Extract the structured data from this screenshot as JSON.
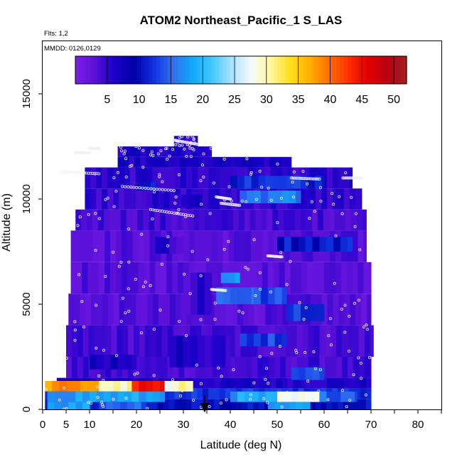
{
  "chart_data": {
    "type": "heatmap",
    "title": "ATOM2 Northeast_Pacific_1 S_LAS",
    "notes": [
      "Flts: 1,2",
      "MMDD: 0126,0129"
    ],
    "xlabel": "Latitude (deg N)",
    "ylabel": "Altitude (m)",
    "xlim": [
      0,
      85
    ],
    "ylim": [
      0,
      17500
    ],
    "x_ticks": [
      0,
      5,
      10,
      20,
      30,
      40,
      50,
      60,
      70,
      80
    ],
    "y_ticks": [
      0,
      5000,
      10000,
      15000
    ],
    "colorbar": {
      "min": 0,
      "max": 52,
      "ticks": [
        5,
        10,
        15,
        20,
        25,
        30,
        35,
        40,
        45,
        50
      ],
      "colors": [
        "#7a1ee8",
        "#5a10d8",
        "#1a00c8",
        "#0000a8",
        "#1030e0",
        "#3070f0",
        "#10a8f8",
        "#40c8ff",
        "#a8e0ff",
        "#f4fbff",
        "#fff8a0",
        "#ffe020",
        "#ffb000",
        "#ff7000",
        "#ff3000",
        "#e00000",
        "#b80010",
        "#a02020"
      ]
    },
    "layers": [
      {
        "alt": [
          0,
          500
        ],
        "lat": [
          0.5,
          70
        ],
        "level": 10
      },
      {
        "alt": [
          500,
          1000
        ],
        "lat": [
          0.5,
          70
        ],
        "level": 12
      },
      {
        "alt": [
          1000,
          1500
        ],
        "lat": [
          3,
          70
        ],
        "level": 6
      },
      {
        "alt": [
          1500,
          2500
        ],
        "lat": [
          5,
          70
        ],
        "level": 4
      },
      {
        "alt": [
          2500,
          4000
        ],
        "lat": [
          5,
          70.5
        ],
        "level": 4
      },
      {
        "alt": [
          4000,
          5500
        ],
        "lat": [
          5.5,
          70
        ],
        "level": 3
      },
      {
        "alt": [
          5500,
          7000
        ],
        "lat": [
          6,
          70
        ],
        "level": 3
      },
      {
        "alt": [
          7000,
          8500
        ],
        "lat": [
          6,
          69
        ],
        "level": 3
      },
      {
        "alt": [
          8500,
          9500
        ],
        "lat": [
          7,
          69
        ],
        "level": 4
      },
      {
        "alt": [
          9500,
          10500
        ],
        "lat": [
          9,
          68
        ],
        "level": 5
      },
      {
        "alt": [
          10500,
          11500
        ],
        "lat": [
          9,
          66
        ],
        "level": 5
      },
      {
        "alt": [
          11500,
          12000
        ],
        "lat": [
          16,
          53
        ],
        "level": 6
      },
      {
        "alt": [
          12000,
          12500
        ],
        "lat": [
          16,
          36
        ],
        "level": 6
      },
      {
        "alt": [
          12500,
          13000
        ],
        "lat": [
          28,
          33
        ],
        "level": 5
      }
    ],
    "patches": [
      {
        "alt": [
          850,
          1350
        ],
        "lat": [
          0.5,
          12
        ],
        "level": 38
      },
      {
        "alt": [
          850,
          1350
        ],
        "lat": [
          12,
          19
        ],
        "level": 30
      },
      {
        "alt": [
          850,
          1350
        ],
        "lat": [
          19,
          26
        ],
        "level": 44
      },
      {
        "alt": [
          850,
          1350
        ],
        "lat": [
          26,
          29
        ],
        "level": 27
      },
      {
        "alt": [
          850,
          1350
        ],
        "lat": [
          29,
          32
        ],
        "level": 30
      },
      {
        "alt": [
          350,
          850
        ],
        "lat": [
          1,
          26
        ],
        "level": 18
      },
      {
        "alt": [
          350,
          850
        ],
        "lat": [
          40,
          50
        ],
        "level": 18
      },
      {
        "alt": [
          350,
          850
        ],
        "lat": [
          50,
          59
        ],
        "level": 27
      },
      {
        "alt": [
          350,
          850
        ],
        "lat": [
          59,
          67
        ],
        "level": 15
      },
      {
        "alt": [
          0,
          350
        ],
        "lat": [
          1,
          10
        ],
        "level": 18
      },
      {
        "alt": [
          0,
          350
        ],
        "lat": [
          12,
          22
        ],
        "level": 15
      },
      {
        "alt": [
          0,
          350
        ],
        "lat": [
          48,
          57
        ],
        "level": 18
      },
      {
        "alt": [
          6000,
          6500
        ],
        "lat": [
          38,
          42
        ],
        "level": 18
      },
      {
        "alt": [
          5000,
          5800
        ],
        "lat": [
          37,
          45
        ],
        "level": 15
      },
      {
        "alt": [
          5000,
          5800
        ],
        "lat": [
          45,
          52
        ],
        "level": 13
      },
      {
        "alt": [
          3000,
          3600
        ],
        "lat": [
          42,
          52
        ],
        "level": 13
      },
      {
        "alt": [
          7500,
          8200
        ],
        "lat": [
          50,
          66
        ],
        "level": 11
      },
      {
        "alt": [
          9800,
          10400
        ],
        "lat": [
          42,
          55
        ],
        "level": 16
      },
      {
        "alt": [
          10500,
          11100
        ],
        "lat": [
          40,
          60
        ],
        "level": 12
      },
      {
        "alt": [
          10400,
          10800
        ],
        "lat": [
          20,
          24
        ],
        "level": 12
      },
      {
        "alt": [
          4200,
          5000
        ],
        "lat": [
          52,
          60
        ],
        "level": 13
      },
      {
        "alt": [
          1400,
          2000
        ],
        "lat": [
          53,
          60
        ],
        "level": 13
      },
      {
        "alt": [
          1900,
          2600
        ],
        "lat": [
          10,
          20
        ],
        "level": 7
      },
      {
        "alt": [
          7400,
          8200
        ],
        "lat": [
          24,
          30
        ],
        "level": 5
      },
      {
        "alt": [
          4500,
          6500
        ],
        "lat": [
          30,
          36
        ],
        "level": 5
      },
      {
        "alt": [
          9600,
          10200
        ],
        "lat": [
          28,
          34
        ],
        "level": 6
      },
      {
        "alt": [
          2000,
          3500
        ],
        "lat": [
          27,
          40
        ],
        "level": 6
      }
    ]
  }
}
